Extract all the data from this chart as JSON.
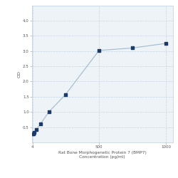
{
  "x": [
    4,
    8,
    15.6,
    31.25,
    62.5,
    125,
    250,
    500,
    750,
    1000
  ],
  "y": [
    0.27,
    0.29,
    0.33,
    0.42,
    0.6,
    1.0,
    1.57,
    3.02,
    3.1,
    3.25
  ],
  "line_color": "#a8bfd0",
  "marker_color": "#1a3a6b",
  "marker_size": 3.5,
  "line_width": 0.9,
  "xlabel_line1": "Rat Bone Morphogenetic Protein 7 (BMP7)",
  "xlabel_line2": "Concentration (pg/ml)",
  "ylabel": "OD",
  "xlim": [
    0,
    1050
  ],
  "ylim": [
    0,
    4.5
  ],
  "yticks": [
    0.5,
    1.0,
    1.5,
    2.0,
    2.5,
    3.0,
    3.5,
    4.0
  ],
  "xtick_positions": [
    4,
    500,
    1000
  ],
  "xtick_labels": [
    "4",
    "500",
    "1000"
  ],
  "grid_color": "#c5d5e5",
  "bg_color": "#eef3f8",
  "xlabel_fontsize": 4.2,
  "ylabel_fontsize": 4.5,
  "tick_fontsize": 4.0
}
